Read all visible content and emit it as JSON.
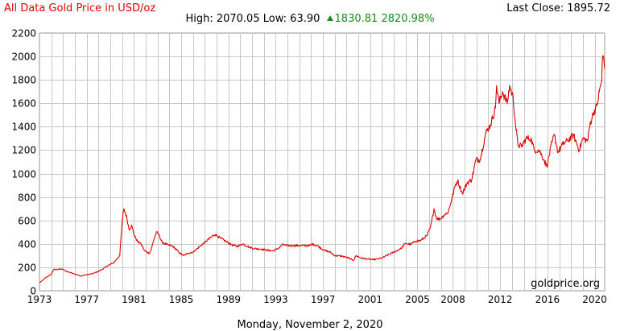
{
  "header": {
    "title": "All Data Gold Price in USD/oz",
    "last_close_label": "Last Close:",
    "last_close_value": "1895.72",
    "high_label": "High:",
    "high_value": "2070.05",
    "low_label": "Low:",
    "low_value": "63.90",
    "change_value": "1830.81",
    "change_pct": "2820.98%"
  },
  "footer": {
    "date": "Monday, November 2, 2020"
  },
  "watermark": "goldprice.org",
  "colors": {
    "line": "#e00000",
    "grid": "#c8c8c8",
    "title": "#e00000",
    "change": "#1a8a1a"
  },
  "chart_data": {
    "type": "line",
    "title": "All Data Gold Price in USD/oz",
    "xlabel": "",
    "ylabel": "",
    "xlim": [
      1973,
      2020.85
    ],
    "ylim": [
      0,
      2200
    ],
    "yticks": [
      0,
      200,
      400,
      600,
      800,
      1000,
      1200,
      1400,
      1600,
      1800,
      2000,
      2200
    ],
    "xtick_labels": [
      "1973",
      "1977",
      "1981",
      "1985",
      "1989",
      "1993",
      "1997",
      "2001",
      "2005",
      "2008",
      "2012",
      "2016",
      "2020"
    ],
    "grid": true,
    "legend": "none",
    "series": [
      {
        "x": [
          1973.0,
          1973.5,
          1974.0,
          1974.2,
          1974.9,
          1975.3,
          1975.8,
          1976.5,
          1976.9,
          1977.5,
          1978.2,
          1978.8,
          1979.3,
          1979.8,
          1979.95,
          1980.05,
          1980.15,
          1980.4,
          1980.6,
          1980.8,
          1981.0,
          1981.3,
          1981.6,
          1981.9,
          1982.3,
          1982.45,
          1982.7,
          1982.9,
          1983.1,
          1983.4,
          1983.9,
          1984.3,
          1984.9,
          1985.2,
          1985.6,
          1986.0,
          1986.6,
          1987.2,
          1987.7,
          1987.9,
          1988.3,
          1988.8,
          1989.3,
          1989.8,
          1990.2,
          1990.8,
          1991.2,
          1991.8,
          1992.3,
          1992.8,
          1993.2,
          1993.6,
          1993.9,
          1994.5,
          1995.2,
          1995.9,
          1996.1,
          1996.6,
          1997.1,
          1997.6,
          1998.0,
          1998.6,
          1999.0,
          1999.6,
          1999.8,
          2000.2,
          2000.8,
          2001.2,
          2001.6,
          2002.0,
          2002.6,
          2003.0,
          2003.6,
          2004.0,
          2004.4,
          2004.9,
          2005.3,
          2005.8,
          2006.1,
          2006.4,
          2006.6,
          2006.9,
          2007.3,
          2007.6,
          2007.9,
          2008.2,
          2008.4,
          2008.8,
          2009.2,
          2009.6,
          2009.95,
          2010.3,
          2010.8,
          2011.2,
          2011.6,
          2011.7,
          2011.9,
          2012.2,
          2012.6,
          2012.8,
          2013.1,
          2013.3,
          2013.5,
          2013.8,
          2014.2,
          2014.6,
          2014.9,
          2015.3,
          2015.7,
          2015.95,
          2016.4,
          2016.6,
          2016.9,
          2017.3,
          2017.7,
          2018.2,
          2018.7,
          2019.0,
          2019.4,
          2019.6,
          2019.9,
          2020.2,
          2020.4,
          2020.6,
          2020.65,
          2020.75,
          2020.84
        ],
        "values": [
          66,
          110,
          140,
          180,
          185,
          165,
          150,
          125,
          135,
          145,
          175,
          215,
          240,
          300,
          520,
          640,
          700,
          620,
          520,
          560,
          480,
          420,
          400,
          340,
          320,
          350,
          440,
          500,
          480,
          410,
          390,
          380,
          320,
          300,
          320,
          330,
          380,
          430,
          470,
          480,
          450,
          420,
          390,
          380,
          400,
          370,
          360,
          355,
          345,
          340,
          360,
          395,
          385,
          385,
          385,
          385,
          400,
          380,
          345,
          330,
          300,
          295,
          285,
          260,
          300,
          280,
          270,
          265,
          270,
          280,
          310,
          330,
          360,
          405,
          395,
          425,
          430,
          470,
          540,
          700,
          620,
          610,
          650,
          670,
          780,
          900,
          940,
          830,
          920,
          950,
          1120,
          1120,
          1350,
          1420,
          1560,
          1750,
          1600,
          1700,
          1600,
          1750,
          1650,
          1420,
          1250,
          1230,
          1300,
          1300,
          1200,
          1200,
          1120,
          1060,
          1270,
          1330,
          1180,
          1250,
          1280,
          1330,
          1200,
          1300,
          1280,
          1420,
          1520,
          1580,
          1700,
          1800,
          1970,
          2000,
          1895
        ]
      }
    ]
  }
}
